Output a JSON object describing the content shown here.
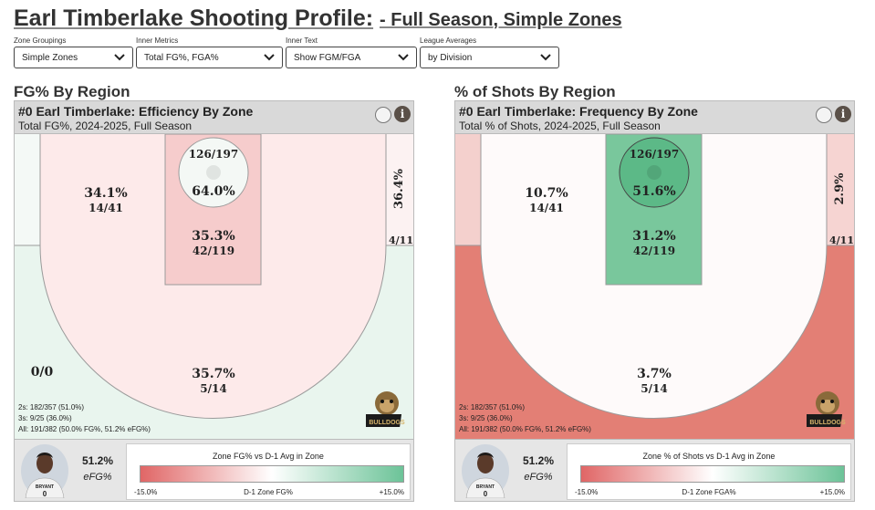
{
  "title": {
    "main": "Earl Timberlake Shooting Profile:",
    "sub": "- Full Season, Simple Zones"
  },
  "controls": [
    {
      "label": "Zone Groupings",
      "value": "Simple Zones"
    },
    {
      "label": "Inner Metrics",
      "value": "Total FG%, FGA%"
    },
    {
      "label": "Inner Text",
      "value": "Show FGM/FGA"
    },
    {
      "label": "League Averages",
      "value": "by Division"
    }
  ],
  "panels": [
    {
      "section_title": "FG% By Region",
      "title": "#0 Earl Timberlake: Efficiency By Zone",
      "subtitle": "Total FG%, 2024-2025, Full Season",
      "colors": {
        "left_mid": "#fdeaea",
        "left_corner": "#f4f9f6",
        "paint": "#f6cccc",
        "rim": "#f4f8f5",
        "right_corner": "#fcf2f2",
        "three": "#e9f5ee"
      },
      "zones": {
        "rim_counts": "126/197",
        "rim_pct": "64.0%",
        "paint_pct": "35.3%",
        "paint_counts": "42/119",
        "mid_pct": "34.1%",
        "mid_counts": "14/41",
        "right_pct": "36.4%",
        "right_counts": "4/11",
        "corner_left": "0/0",
        "three_pct": "35.7%",
        "three_counts": "5/14"
      },
      "stats": {
        "twos": "2s: 182/357 (51.0%)",
        "threes": "3s: 9/25 (36.0%)",
        "all": "All: 191/382 (50.0% FG%, 51.2% eFG%)"
      },
      "player": {
        "value": "51.2%",
        "label": "eFG%",
        "jersey": "0",
        "team_text": "BRYANT"
      },
      "logo_text": "BULLDOGS",
      "legend": {
        "title": "Zone FG% vs D-1 Avg in Zone",
        "low": "-15.0%",
        "mid": "D-1 Zone FG%",
        "high": "+15.0%"
      }
    },
    {
      "section_title": "% of Shots By Region",
      "title": "#0 Earl Timberlake: Frequency By Zone",
      "subtitle": "Total % of Shots, 2024-2025, Full Season",
      "colors": {
        "left_mid": "#fefafa",
        "left_corner": "#f4d0cd",
        "paint": "#79c79c",
        "rim": "#5cb987",
        "right_corner": "#f6d4d2",
        "three": "#e37f75"
      },
      "zones": {
        "rim_counts": "126/197",
        "rim_pct": "51.6%",
        "paint_pct": "31.2%",
        "paint_counts": "42/119",
        "mid_pct": "10.7%",
        "mid_counts": "14/41",
        "right_pct": "2.9%",
        "right_counts": "4/11",
        "corner_left": "",
        "three_pct": "3.7%",
        "three_counts": "5/14"
      },
      "stats": {
        "twos": "2s: 182/357 (51.0%)",
        "threes": "3s: 9/25 (36.0%)",
        "all": "All: 191/382 (50.0% FG%, 51.2% eFG%)"
      },
      "player": {
        "value": "51.2%",
        "label": "eFG%",
        "jersey": "0",
        "team_text": "BRYANT"
      },
      "logo_text": "BULLDOGS",
      "legend": {
        "title": "Zone % of Shots vs D-1 Avg in Zone",
        "low": "-15.0%",
        "mid": "D-1 Zone FGA%",
        "high": "+15.0%"
      }
    }
  ]
}
